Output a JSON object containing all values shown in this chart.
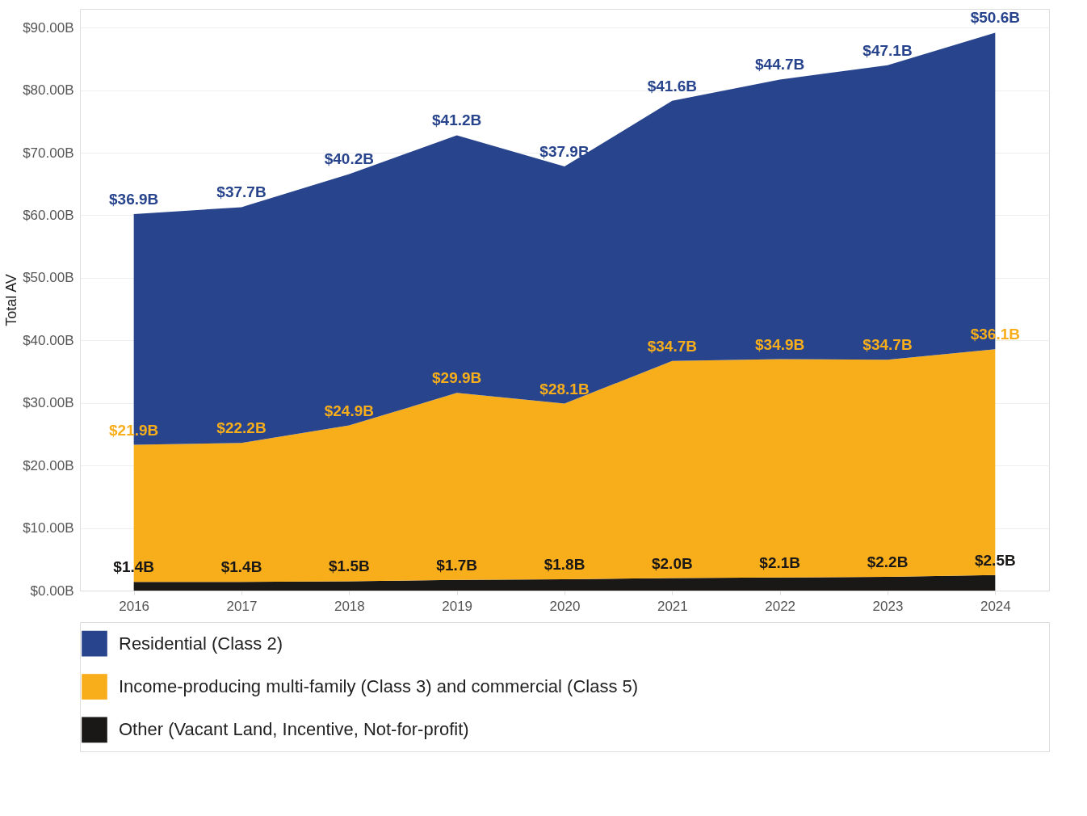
{
  "chart_data": {
    "type": "area",
    "ylabel": "Total AV",
    "stacked": true,
    "categories": [
      "2016",
      "2017",
      "2018",
      "2019",
      "2020",
      "2021",
      "2022",
      "2023",
      "2024"
    ],
    "series": [
      {
        "name": "Other (Vacant Land, Incentive, Not-for-profit)",
        "color": "#1a1717",
        "values": [
          1.4,
          1.4,
          1.5,
          1.7,
          1.8,
          2.0,
          2.1,
          2.2,
          2.5
        ],
        "value_labels": [
          "$1.4B",
          "$1.4B",
          "$1.5B",
          "$1.7B",
          "$1.8B",
          "$2.0B",
          "$2.1B",
          "$2.2B",
          "$2.5B"
        ]
      },
      {
        "name": "Income-producing multi-family (Class 3) and commercial (Class 5)",
        "color": "#f8ae1b",
        "values": [
          21.9,
          22.2,
          24.9,
          29.9,
          28.1,
          34.7,
          34.9,
          34.7,
          36.1
        ],
        "value_labels": [
          "$21.9B",
          "$22.2B",
          "$24.9B",
          "$29.9B",
          "$28.1B",
          "$34.7B",
          "$34.9B",
          "$34.7B",
          "$36.1B"
        ]
      },
      {
        "name": "Residential (Class 2)",
        "color": "#27448d",
        "values": [
          36.9,
          37.7,
          40.2,
          41.2,
          37.9,
          41.6,
          44.7,
          47.1,
          50.6
        ],
        "value_labels": [
          "$36.9B",
          "$37.7B",
          "$40.2B",
          "$41.2B",
          "$37.9B",
          "$41.6B",
          "$44.7B",
          "$47.1B",
          "$50.6B"
        ]
      }
    ],
    "ylim": [
      0,
      93
    ],
    "yticks": [
      {
        "value": 0,
        "label": "$0.00B"
      },
      {
        "value": 10,
        "label": "$10.00B"
      },
      {
        "value": 20,
        "label": "$20.00B"
      },
      {
        "value": 30,
        "label": "$30.00B"
      },
      {
        "value": 40,
        "label": "$40.00B"
      },
      {
        "value": 50,
        "label": "$50.00B"
      },
      {
        "value": 60,
        "label": "$60.00B"
      },
      {
        "value": 70,
        "label": "$70.00B"
      },
      {
        "value": 80,
        "label": "$80.00B"
      },
      {
        "value": 90,
        "label": "$90.00B"
      }
    ],
    "grid": "y",
    "legend": "bottom left"
  }
}
